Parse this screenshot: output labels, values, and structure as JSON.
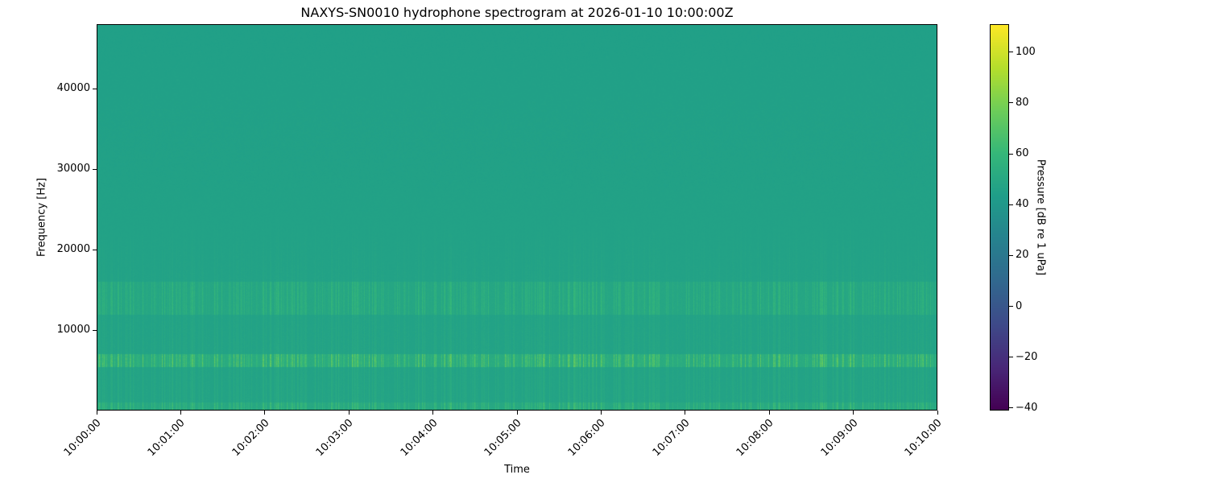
{
  "chart_data": {
    "type": "heatmap",
    "title": "NAXYS-SN0010 hydrophone spectrogram at 2026-01-10 10:00:00Z",
    "xlabel": "Time",
    "ylabel": "Frequency [Hz]",
    "colorbar_label": "Pressure [dB re 1 uPa]",
    "colormap": "viridis",
    "xlim": [
      "10:00:00",
      "10:10:00"
    ],
    "ylim": [
      0,
      48000
    ],
    "clim": [
      -41,
      111
    ],
    "x_ticks": [
      "10:00:00",
      "10:01:00",
      "10:02:00",
      "10:03:00",
      "10:04:00",
      "10:05:00",
      "10:06:00",
      "10:07:00",
      "10:08:00",
      "10:09:00",
      "10:10:00"
    ],
    "y_ticks": [
      10000,
      20000,
      30000,
      40000
    ],
    "colorbar_ticks": [
      -40,
      -20,
      0,
      20,
      40,
      60,
      80,
      100
    ],
    "background_level_db": 47,
    "features": [
      {
        "band_hz": [
          0,
          1000
        ],
        "level_db": 62
      },
      {
        "band_hz": [
          5500,
          7000
        ],
        "level_db": 75
      },
      {
        "band_hz": [
          12000,
          16000
        ],
        "level_db": 60
      }
    ],
    "grid": false
  }
}
